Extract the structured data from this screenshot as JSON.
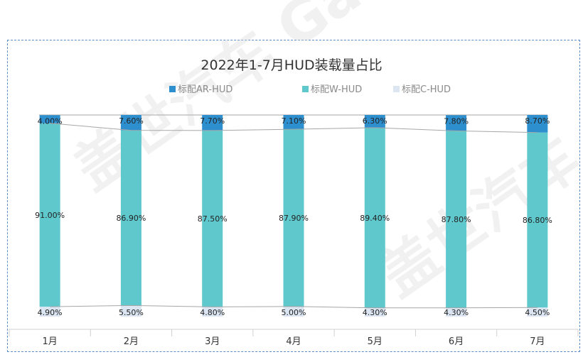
{
  "chart_data": {
    "type": "bar",
    "stacked": true,
    "percent": true,
    "title": "2022年1-7月HUD装载量占比",
    "categories": [
      "1月",
      "2月",
      "3月",
      "4月",
      "5月",
      "6月",
      "7月"
    ],
    "series": [
      {
        "name": "标配C-HUD",
        "color": "#dce6f2",
        "values": [
          4.9,
          5.5,
          4.8,
          5.0,
          4.3,
          4.3,
          4.5
        ],
        "labels": [
          "4.90%",
          "5.50%",
          "4.80%",
          "5.00%",
          "4.30%",
          "4.30%",
          "4.50%"
        ]
      },
      {
        "name": "标配W-HUD",
        "color": "#5ec8cd",
        "values": [
          91.0,
          86.9,
          87.5,
          87.9,
          89.4,
          87.8,
          86.8
        ],
        "labels": [
          "91.00%",
          "86.90%",
          "87.50%",
          "87.90%",
          "89.40%",
          "87.80%",
          "86.80%"
        ]
      },
      {
        "name": "标配AR-HUD",
        "color": "#2e8fcf",
        "values": [
          4.0,
          7.6,
          7.7,
          7.1,
          6.3,
          7.8,
          8.7
        ],
        "labels": [
          "4.00%",
          "7.60%",
          "7.70%",
          "7.10%",
          "6.30%",
          "7.80%",
          "8.70%"
        ]
      }
    ],
    "legend_order": [
      "标配AR-HUD",
      "标配W-HUD",
      "标配C-HUD"
    ],
    "legend_position": "top",
    "ylim": [
      0,
      100
    ],
    "grid": false,
    "watermark": "盖世汽车 Gasgoo"
  }
}
